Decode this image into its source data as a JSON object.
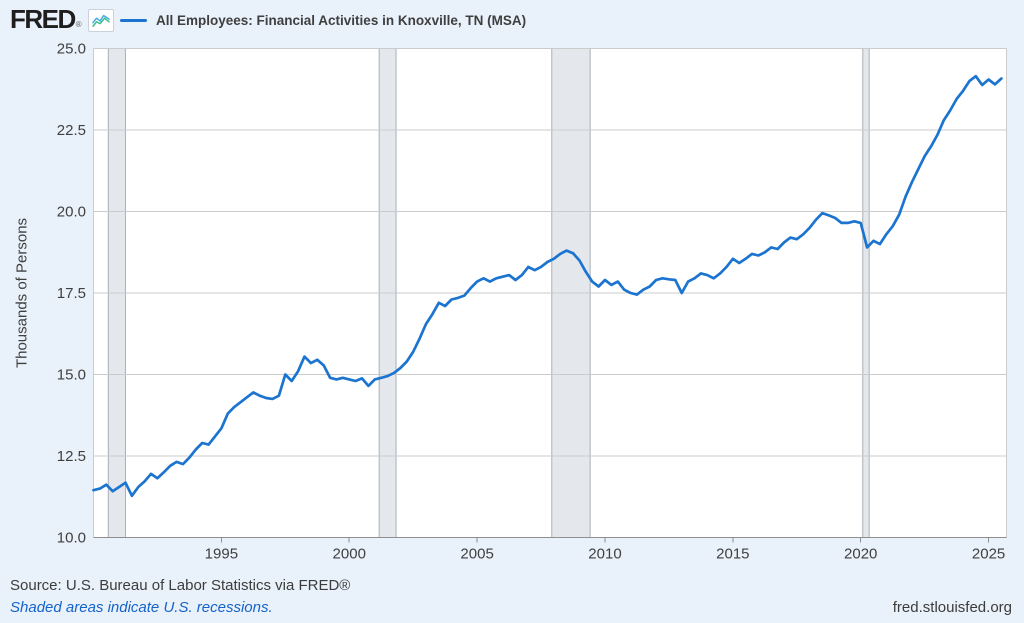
{
  "header": {
    "logo": "FRED",
    "registered": "®",
    "legend": {
      "label": "All Employees: Financial Activities in Knoxville, TN (MSA)",
      "line_color": "#1b74d0"
    }
  },
  "footer": {
    "source": "Source: U.S. Bureau of Labor Statistics via FRED®",
    "note": "Shaded areas indicate U.S. recessions.",
    "site": "fred.stlouisfed.org"
  },
  "chart_data": {
    "type": "line",
    "title": "All Employees: Financial Activities in Knoxville, TN (MSA)",
    "ylabel": "Thousands of Persons",
    "xlabel": "",
    "x_range": [
      1990,
      2025.7
    ],
    "y_range": [
      10.0,
      25.0
    ],
    "x_ticks": [
      1995,
      2000,
      2005,
      2010,
      2015,
      2020,
      2025
    ],
    "y_ticks": [
      "25.0",
      "22.5",
      "20.0",
      "17.5",
      "15.0",
      "12.5",
      "10.0"
    ],
    "grid": "horizontal",
    "legend_position": "top",
    "line_color": "#1b74d0",
    "plot_bg": "#ffffff",
    "grid_color": "#cbcbcb",
    "axis_color": "#8f8f8f",
    "tick_label_color": "#404040",
    "recession_fill": "#e4e8ec",
    "recession_edge": "#aab0b6",
    "recessions": [
      [
        1990.58,
        1991.25
      ],
      [
        2001.17,
        2001.83
      ],
      [
        2007.92,
        2009.42
      ],
      [
        2020.08,
        2020.33
      ]
    ],
    "series": [
      {
        "name": "All Employees: Financial Activities in Knoxville, TN (MSA)",
        "units": "Thousands of Persons",
        "points": [
          [
            1990.0,
            11.45
          ],
          [
            1990.25,
            11.5
          ],
          [
            1990.5,
            11.62
          ],
          [
            1990.75,
            11.42
          ],
          [
            1991.0,
            11.55
          ],
          [
            1991.25,
            11.68
          ],
          [
            1991.5,
            11.28
          ],
          [
            1991.75,
            11.55
          ],
          [
            1992.0,
            11.72
          ],
          [
            1992.25,
            11.95
          ],
          [
            1992.5,
            11.82
          ],
          [
            1992.75,
            12.0
          ],
          [
            1993.0,
            12.2
          ],
          [
            1993.25,
            12.32
          ],
          [
            1993.5,
            12.25
          ],
          [
            1993.75,
            12.45
          ],
          [
            1994.0,
            12.7
          ],
          [
            1994.25,
            12.9
          ],
          [
            1994.5,
            12.85
          ],
          [
            1994.75,
            13.1
          ],
          [
            1995.0,
            13.35
          ],
          [
            1995.25,
            13.8
          ],
          [
            1995.5,
            14.0
          ],
          [
            1995.75,
            14.15
          ],
          [
            1996.0,
            14.3
          ],
          [
            1996.25,
            14.45
          ],
          [
            1996.5,
            14.35
          ],
          [
            1996.75,
            14.28
          ],
          [
            1997.0,
            14.25
          ],
          [
            1997.25,
            14.35
          ],
          [
            1997.5,
            15.0
          ],
          [
            1997.75,
            14.8
          ],
          [
            1998.0,
            15.1
          ],
          [
            1998.25,
            15.55
          ],
          [
            1998.5,
            15.35
          ],
          [
            1998.75,
            15.45
          ],
          [
            1999.0,
            15.28
          ],
          [
            1999.25,
            14.9
          ],
          [
            1999.5,
            14.85
          ],
          [
            1999.75,
            14.9
          ],
          [
            2000.0,
            14.85
          ],
          [
            2000.25,
            14.8
          ],
          [
            2000.5,
            14.88
          ],
          [
            2000.75,
            14.65
          ],
          [
            2001.0,
            14.85
          ],
          [
            2001.25,
            14.9
          ],
          [
            2001.5,
            14.95
          ],
          [
            2001.75,
            15.05
          ],
          [
            2002.0,
            15.2
          ],
          [
            2002.25,
            15.4
          ],
          [
            2002.5,
            15.7
          ],
          [
            2002.75,
            16.1
          ],
          [
            2003.0,
            16.55
          ],
          [
            2003.25,
            16.85
          ],
          [
            2003.5,
            17.2
          ],
          [
            2003.75,
            17.1
          ],
          [
            2004.0,
            17.3
          ],
          [
            2004.25,
            17.35
          ],
          [
            2004.5,
            17.42
          ],
          [
            2004.75,
            17.65
          ],
          [
            2005.0,
            17.85
          ],
          [
            2005.25,
            17.95
          ],
          [
            2005.5,
            17.85
          ],
          [
            2005.75,
            17.95
          ],
          [
            2006.0,
            18.0
          ],
          [
            2006.25,
            18.05
          ],
          [
            2006.5,
            17.9
          ],
          [
            2006.75,
            18.05
          ],
          [
            2007.0,
            18.3
          ],
          [
            2007.25,
            18.2
          ],
          [
            2007.5,
            18.3
          ],
          [
            2007.75,
            18.45
          ],
          [
            2008.0,
            18.55
          ],
          [
            2008.25,
            18.7
          ],
          [
            2008.5,
            18.8
          ],
          [
            2008.75,
            18.72
          ],
          [
            2009.0,
            18.5
          ],
          [
            2009.25,
            18.15
          ],
          [
            2009.5,
            17.85
          ],
          [
            2009.75,
            17.7
          ],
          [
            2010.0,
            17.9
          ],
          [
            2010.25,
            17.75
          ],
          [
            2010.5,
            17.85
          ],
          [
            2010.75,
            17.6
          ],
          [
            2011.0,
            17.5
          ],
          [
            2011.25,
            17.45
          ],
          [
            2011.5,
            17.6
          ],
          [
            2011.75,
            17.7
          ],
          [
            2012.0,
            17.9
          ],
          [
            2012.25,
            17.95
          ],
          [
            2012.5,
            17.92
          ],
          [
            2012.75,
            17.9
          ],
          [
            2013.0,
            17.5
          ],
          [
            2013.25,
            17.85
          ],
          [
            2013.5,
            17.95
          ],
          [
            2013.75,
            18.1
          ],
          [
            2014.0,
            18.05
          ],
          [
            2014.25,
            17.95
          ],
          [
            2014.5,
            18.1
          ],
          [
            2014.75,
            18.3
          ],
          [
            2015.0,
            18.55
          ],
          [
            2015.25,
            18.42
          ],
          [
            2015.5,
            18.55
          ],
          [
            2015.75,
            18.7
          ],
          [
            2016.0,
            18.65
          ],
          [
            2016.25,
            18.75
          ],
          [
            2016.5,
            18.9
          ],
          [
            2016.75,
            18.85
          ],
          [
            2017.0,
            19.05
          ],
          [
            2017.25,
            19.2
          ],
          [
            2017.5,
            19.15
          ],
          [
            2017.75,
            19.3
          ],
          [
            2018.0,
            19.5
          ],
          [
            2018.25,
            19.75
          ],
          [
            2018.5,
            19.95
          ],
          [
            2018.75,
            19.88
          ],
          [
            2019.0,
            19.8
          ],
          [
            2019.25,
            19.65
          ],
          [
            2019.5,
            19.65
          ],
          [
            2019.75,
            19.7
          ],
          [
            2020.0,
            19.65
          ],
          [
            2020.25,
            18.9
          ],
          [
            2020.5,
            19.1
          ],
          [
            2020.75,
            19.0
          ],
          [
            2021.0,
            19.3
          ],
          [
            2021.25,
            19.55
          ],
          [
            2021.5,
            19.9
          ],
          [
            2021.75,
            20.45
          ],
          [
            2022.0,
            20.9
          ],
          [
            2022.25,
            21.3
          ],
          [
            2022.5,
            21.7
          ],
          [
            2022.75,
            22.0
          ],
          [
            2023.0,
            22.35
          ],
          [
            2023.25,
            22.8
          ],
          [
            2023.5,
            23.1
          ],
          [
            2023.75,
            23.45
          ],
          [
            2024.0,
            23.7
          ],
          [
            2024.25,
            24.0
          ],
          [
            2024.5,
            24.15
          ],
          [
            2024.75,
            23.88
          ],
          [
            2025.0,
            24.05
          ],
          [
            2025.25,
            23.9
          ],
          [
            2025.5,
            24.08
          ]
        ]
      }
    ]
  }
}
